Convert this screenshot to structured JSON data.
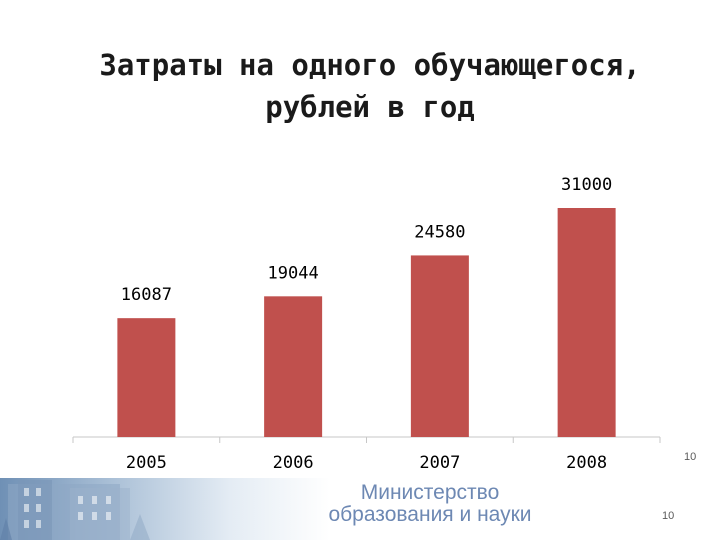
{
  "slide": {
    "title_line1": "Затраты на одного обучающегося,",
    "title_line2": "рублей в год",
    "page_number": "10"
  },
  "footer": {
    "ministry_line1": "Министерство",
    "ministry_line2": "образования и науки",
    "page_number": "10"
  },
  "colors": {
    "bar": "#c0504d",
    "axis": "#c7c7c7"
  },
  "chart_data": {
    "type": "bar",
    "title": "Затраты на одного обучающегося, рублей в год",
    "categories": [
      "2005",
      "2006",
      "2007",
      "2008"
    ],
    "values": [
      16087,
      19044,
      24580,
      31000
    ],
    "data_labels": [
      "16087",
      "19044",
      "24580",
      "31000"
    ],
    "grid": false,
    "legend": "none"
  }
}
